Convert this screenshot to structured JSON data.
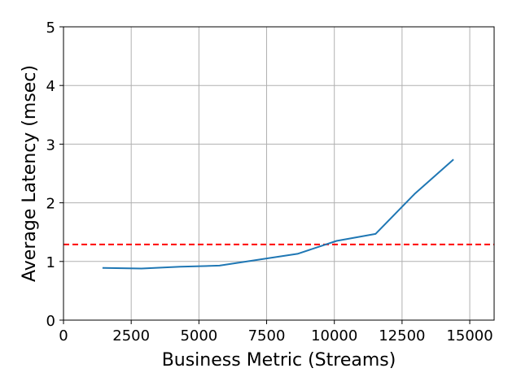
{
  "chart_data": {
    "type": "line",
    "title": "",
    "xlabel": "Business Metric (Streams)",
    "ylabel": "Average Latency (msec)",
    "xlim": [
      0,
      15900
    ],
    "ylim": [
      0,
      5
    ],
    "xticks": [
      0,
      2500,
      5000,
      7500,
      10000,
      12500,
      15000
    ],
    "xtick_labels": [
      "0",
      "2500",
      "5000",
      "7500",
      "10000",
      "12500",
      "15000"
    ],
    "yticks": [
      0,
      1,
      2,
      3,
      4,
      5
    ],
    "ytick_labels": [
      "0",
      "1",
      "2",
      "3",
      "4",
      "5"
    ],
    "grid": true,
    "series": [
      {
        "color": "#1f77b4",
        "x": [
          1440,
          2880,
          4320,
          5760,
          7200,
          8640,
          10080,
          11520,
          12960,
          14400
        ],
        "y": [
          0.89,
          0.88,
          0.91,
          0.93,
          1.03,
          1.13,
          1.35,
          1.47,
          2.15,
          2.74
        ]
      }
    ],
    "reference_lines": [
      {
        "orientation": "horizontal",
        "y": 1.29,
        "color": "#ff0000",
        "style": "dashed"
      }
    ]
  }
}
